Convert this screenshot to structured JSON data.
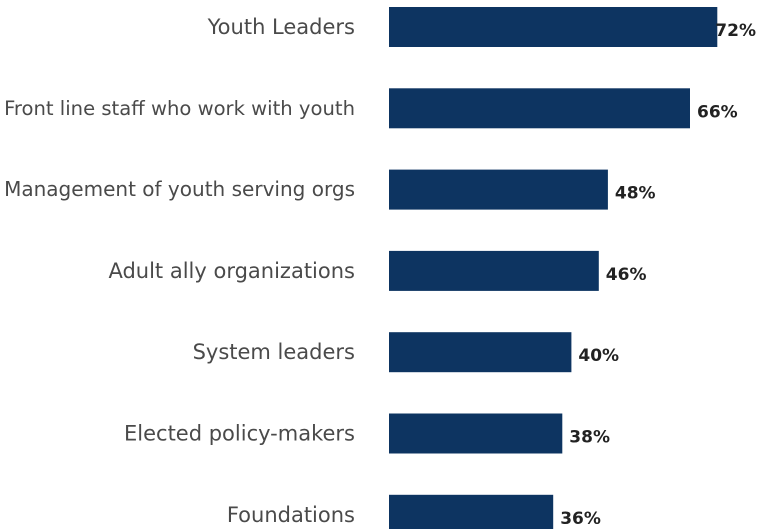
{
  "chart_data": {
    "type": "bar",
    "orientation": "horizontal",
    "categories": [
      "Youth Leaders",
      "Front line staff who work with youth",
      "Management of youth serving orgs",
      "Adult ally organizations",
      "System leaders",
      "Elected policy-makers",
      "Foundations"
    ],
    "values": [
      72,
      66,
      48,
      46,
      40,
      38,
      36
    ],
    "value_labels": [
      "72%",
      "66%",
      "48%",
      "46%",
      "40%",
      "38%",
      "36%"
    ],
    "unit": "%",
    "xlim": [
      0,
      100
    ],
    "grid": false,
    "legend": "none",
    "bar_color": "#0d3461"
  }
}
